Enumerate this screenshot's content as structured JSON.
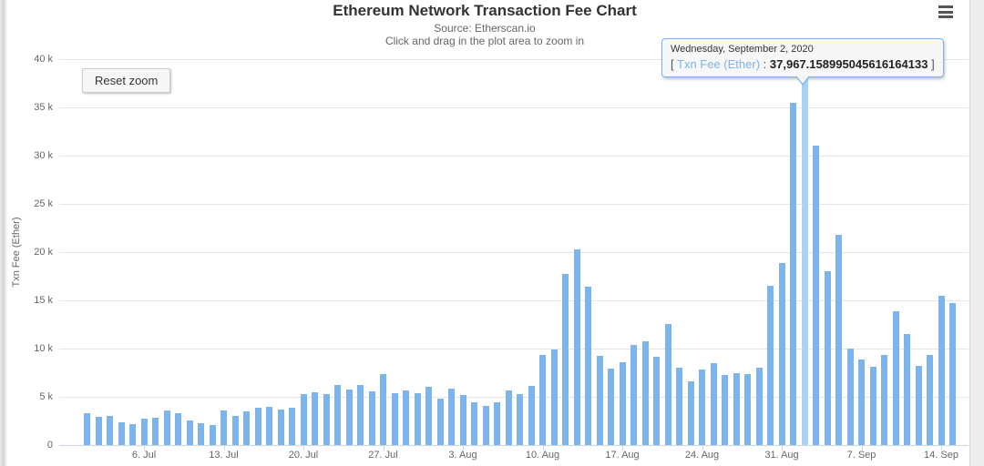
{
  "header": {
    "title": "Ethereum Network Transaction Fee Chart",
    "subtitle": "Source: Etherscan.io",
    "hint": "Click and drag in the plot area to zoom in"
  },
  "controls": {
    "reset_zoom_label": "Reset zoom",
    "menu_icon": "hamburger-menu-icon"
  },
  "tooltip": {
    "date": "Wednesday, September 2, 2020",
    "bracket_open": "[",
    "series_label": "Txn Fee (Ether)",
    "separator": ":",
    "value": "37,967.158995045616164133",
    "bracket_close": "]"
  },
  "colors": {
    "bar": "#7cb5ec",
    "bar_hover": "#a9d3f5",
    "tooltip_border": "#7cb5ec",
    "series_label": "#7cb5ec",
    "grid": "#e6e6e6",
    "axis": "#ccd6eb",
    "title": "#333333",
    "subtitle": "#666666",
    "tick_label": "#666666"
  },
  "chart_data": {
    "type": "bar",
    "title": "Ethereum Network Transaction Fee Chart",
    "subtitle": "Source: Etherscan.io",
    "xlabel": "",
    "ylabel": "Txn Fee (Ether)",
    "ylim": [
      0,
      40000
    ],
    "grid": "horizontal",
    "legend": "off",
    "yticks": [
      {
        "value": 0,
        "label": "0"
      },
      {
        "value": 5000,
        "label": "5 k"
      },
      {
        "value": 10000,
        "label": "10 k"
      },
      {
        "value": 15000,
        "label": "15 k"
      },
      {
        "value": 20000,
        "label": "20 k"
      },
      {
        "value": 25000,
        "label": "25 k"
      },
      {
        "value": 30000,
        "label": "30 k"
      },
      {
        "value": 35000,
        "label": "35 k"
      },
      {
        "value": 40000,
        "label": "40 k"
      }
    ],
    "xticks": [
      {
        "index": 5,
        "label": "6. Jul"
      },
      {
        "index": 12,
        "label": "13. Jul"
      },
      {
        "index": 19,
        "label": "20. Jul"
      },
      {
        "index": 26,
        "label": "27. Jul"
      },
      {
        "index": 33,
        "label": "3. Aug"
      },
      {
        "index": 40,
        "label": "10. Aug"
      },
      {
        "index": 47,
        "label": "17. Aug"
      },
      {
        "index": 54,
        "label": "24. Aug"
      },
      {
        "index": 61,
        "label": "31. Aug"
      },
      {
        "index": 68,
        "label": "7. Sep"
      },
      {
        "index": 75,
        "label": "14. Sep"
      }
    ],
    "series": [
      {
        "name": "Txn Fee (Ether)",
        "x": [
          "2020-07-01",
          "2020-07-02",
          "2020-07-03",
          "2020-07-04",
          "2020-07-05",
          "2020-07-06",
          "2020-07-07",
          "2020-07-08",
          "2020-07-09",
          "2020-07-10",
          "2020-07-11",
          "2020-07-12",
          "2020-07-13",
          "2020-07-14",
          "2020-07-15",
          "2020-07-16",
          "2020-07-17",
          "2020-07-18",
          "2020-07-19",
          "2020-07-20",
          "2020-07-21",
          "2020-07-22",
          "2020-07-23",
          "2020-07-24",
          "2020-07-25",
          "2020-07-26",
          "2020-07-27",
          "2020-07-28",
          "2020-07-29",
          "2020-07-30",
          "2020-07-31",
          "2020-08-01",
          "2020-08-02",
          "2020-08-03",
          "2020-08-04",
          "2020-08-05",
          "2020-08-06",
          "2020-08-07",
          "2020-08-08",
          "2020-08-09",
          "2020-08-10",
          "2020-08-11",
          "2020-08-12",
          "2020-08-13",
          "2020-08-14",
          "2020-08-15",
          "2020-08-16",
          "2020-08-17",
          "2020-08-18",
          "2020-08-19",
          "2020-08-20",
          "2020-08-21",
          "2020-08-22",
          "2020-08-23",
          "2020-08-24",
          "2020-08-25",
          "2020-08-26",
          "2020-08-27",
          "2020-08-28",
          "2020-08-29",
          "2020-08-30",
          "2020-08-31",
          "2020-09-01",
          "2020-09-02",
          "2020-09-03",
          "2020-09-04",
          "2020-09-05",
          "2020-09-06",
          "2020-09-07",
          "2020-09-08",
          "2020-09-09",
          "2020-09-10",
          "2020-09-11",
          "2020-09-12",
          "2020-09-13",
          "2020-09-14",
          "2020-09-15"
        ],
        "values": [
          3300,
          2900,
          3000,
          2350,
          2150,
          2700,
          2800,
          3600,
          3300,
          2550,
          2250,
          2100,
          3600,
          3000,
          3500,
          3850,
          3950,
          3700,
          3900,
          5300,
          5450,
          5300,
          6200,
          5750,
          6200,
          5550,
          7400,
          5400,
          5650,
          5350,
          6050,
          4800,
          5850,
          5200,
          4450,
          4100,
          4450,
          5650,
          5300,
          6100,
          9350,
          9900,
          17700,
          20300,
          16450,
          9200,
          7900,
          8550,
          10350,
          10750,
          9150,
          12550,
          8000,
          6600,
          7800,
          8450,
          7300,
          7500,
          7350,
          8000,
          16550,
          18900,
          35500,
          37967.15899504562,
          31000,
          18000,
          21750,
          10000,
          8850,
          8150,
          9350,
          13900,
          11500,
          8200,
          9300,
          15500,
          14750
        ]
      }
    ],
    "highlighted_point": {
      "index": 63,
      "date": "2020-09-02",
      "value": 37967.15899504562
    }
  }
}
